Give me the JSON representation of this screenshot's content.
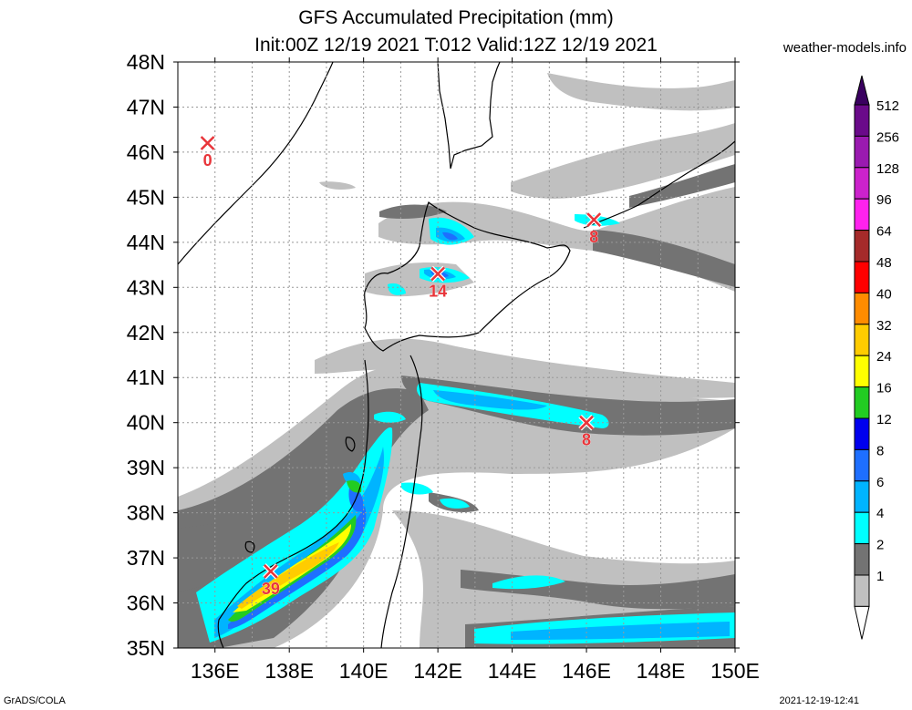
{
  "title": {
    "line1": "GFS Accumulated Precipitation (mm)",
    "line2": "Init:00Z 12/19 2021 T:012 Valid:12Z 12/19 2021"
  },
  "site": "weather-models.info",
  "footer": {
    "left": "GrADS/COLA",
    "right": "2021-12-19-12:41"
  },
  "map": {
    "lon_range": [
      135,
      150
    ],
    "lat_range": [
      35,
      48
    ],
    "lat_labels": [
      "48N",
      "47N",
      "46N",
      "45N",
      "44N",
      "43N",
      "42N",
      "41N",
      "40N",
      "39N",
      "38N",
      "37N",
      "36N",
      "35N"
    ],
    "lon_labels": [
      "136E",
      "138E",
      "140E",
      "142E",
      "144E",
      "146E",
      "148E",
      "150E"
    ],
    "gridlines": true
  },
  "markers": [
    {
      "lon": 135.8,
      "lat": 46.2,
      "value": "0"
    },
    {
      "lon": 142.0,
      "lat": 43.3,
      "value": "14"
    },
    {
      "lon": 146.2,
      "lat": 44.5,
      "value": "8"
    },
    {
      "lon": 146.0,
      "lat": 40.0,
      "value": "8"
    },
    {
      "lon": 137.5,
      "lat": 36.7,
      "value": "39"
    }
  ],
  "colorbar": {
    "levels": [
      {
        "label": "512",
        "color": "#6a0a8a"
      },
      {
        "label": "256",
        "color": "#9a1ab0"
      },
      {
        "label": "128",
        "color": "#cc22cc"
      },
      {
        "label": "96",
        "color": "#ff22ee"
      },
      {
        "label": "64",
        "color": "#a52a2a"
      },
      {
        "label": "48",
        "color": "#ff0000"
      },
      {
        "label": "40",
        "color": "#ff8c00"
      },
      {
        "label": "32",
        "color": "#ffcc00"
      },
      {
        "label": "24",
        "color": "#ffff00"
      },
      {
        "label": "16",
        "color": "#22cc22"
      },
      {
        "label": "12",
        "color": "#0000ee"
      },
      {
        "label": "8",
        "color": "#1e6fff"
      },
      {
        "label": "6",
        "color": "#00b4ff"
      },
      {
        "label": "4",
        "color": "#00ffff"
      },
      {
        "label": "2",
        "color": "#737373"
      },
      {
        "label": "1",
        "color": "#c0c0c0"
      }
    ],
    "top_cap_color": "#3a0060"
  }
}
